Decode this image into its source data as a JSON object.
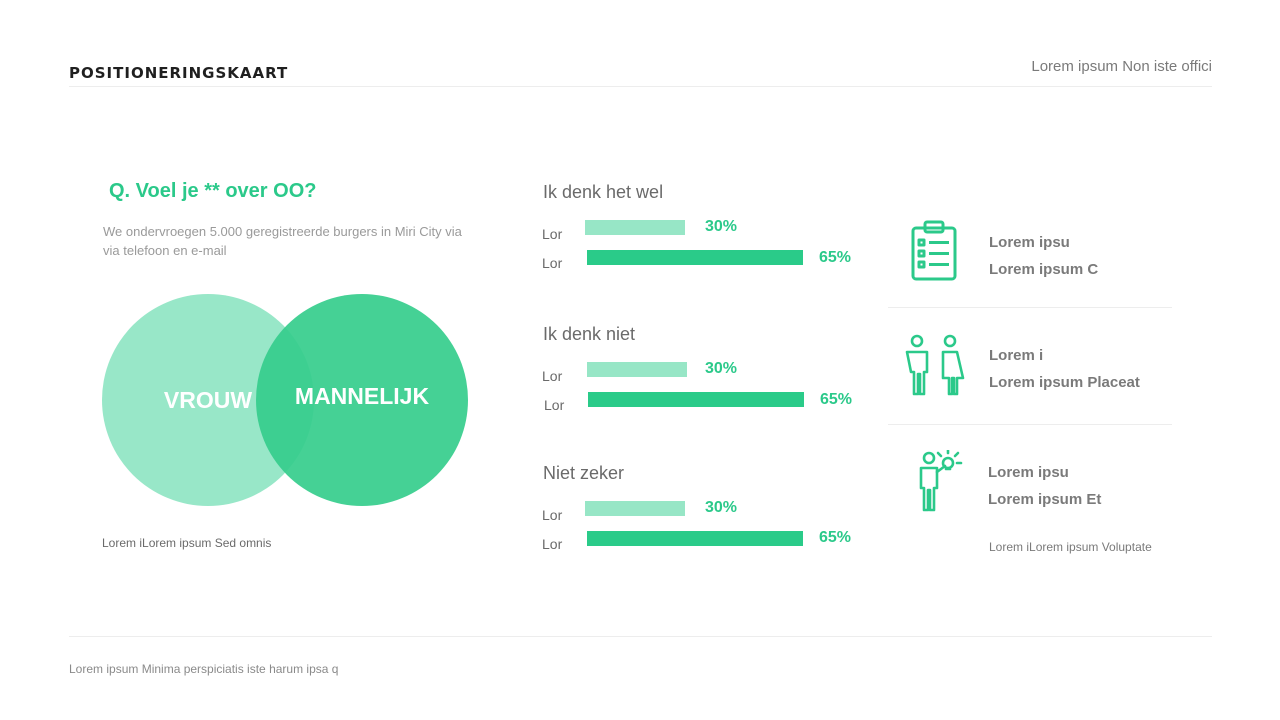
{
  "header": {
    "title": "POSITIONERINGSKAART",
    "top_right_note": "Lorem ipsum Non iste offici"
  },
  "left": {
    "question": "Q. Voel je ** over OO?",
    "description": "We ondervroegen 5.000 geregistreerde burgers in Miri City via via telefoon en e-mail",
    "venn": {
      "left_label": "VROUW",
      "right_label": "MANNELIJK",
      "left_color": "#92e6c5",
      "right_color": "#35cd8c"
    },
    "caption": "Lorem iLorem ipsum Sed omnis"
  },
  "middle": {
    "blocks": [
      {
        "title": "Ik denk het wel",
        "bars": [
          {
            "label": "Lor",
            "value": 30,
            "value_label": "30%"
          },
          {
            "label": "Lor",
            "value": 65,
            "value_label": "65%"
          }
        ]
      },
      {
        "title": "Ik denk niet",
        "bars": [
          {
            "label": "Lor",
            "value": 30,
            "value_label": "30%"
          },
          {
            "label": "Lor",
            "value": 65,
            "value_label": "65%"
          }
        ]
      },
      {
        "title": "Niet zeker",
        "bars": [
          {
            "label": "Lor",
            "value": 30,
            "value_label": "30%"
          },
          {
            "label": "Lor",
            "value": 65,
            "value_label": "65%"
          }
        ]
      }
    ]
  },
  "right": {
    "items": [
      {
        "icon": "clipboard-list-icon",
        "line1": "Lorem ipsu",
        "line2": "Lorem ipsum C"
      },
      {
        "icon": "man-woman-icon",
        "line1": "Lorem i",
        "line2": "Lorem ipsum Placeat"
      },
      {
        "icon": "person-idea-icon",
        "line1": "Lorem ipsu",
        "line2": "Lorem ipsum Et"
      }
    ],
    "caption": "Lorem iLorem ipsum Voluptate"
  },
  "footer": {
    "note": "Lorem ipsum Minima perspiciatis iste harum ipsa q"
  },
  "colors": {
    "accent": "#2bc98a",
    "accent_light": "#97e6c6"
  }
}
